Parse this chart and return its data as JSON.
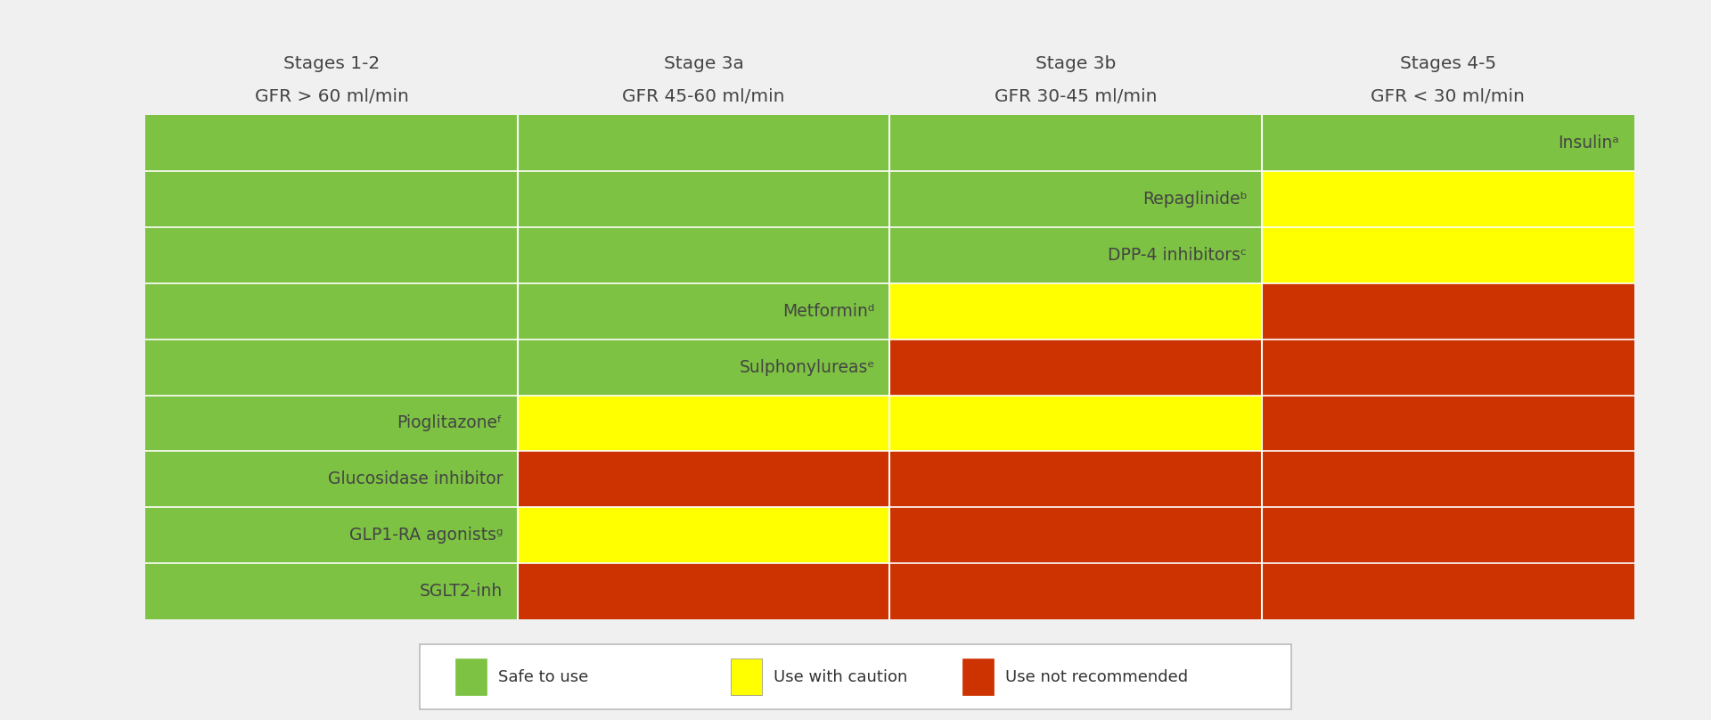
{
  "background_color": "#f0f0f0",
  "header_bg": "#c5cad5",
  "green": "#7dc242",
  "yellow": "#ffff00",
  "orange": "#cc3300",
  "col_labels_line1": [
    "Stages 1-2",
    "Stage 3a",
    "Stage 3b",
    "Stages 4-5"
  ],
  "col_labels_line2": [
    "GFR > 60 ml/min",
    "GFR 45-60 ml/min",
    "GFR 30-45 ml/min",
    "GFR < 30 ml/min"
  ],
  "drugs": [
    {
      "name": "Insulinᵃ",
      "segments": [
        [
          "green",
          4
        ]
      ]
    },
    {
      "name": "Repaglinideᵇ",
      "segments": [
        [
          "green",
          3
        ],
        [
          "yellow",
          1
        ]
      ]
    },
    {
      "name": "DPP-4 inhibitorsᶜ",
      "segments": [
        [
          "green",
          3
        ],
        [
          "yellow",
          1
        ]
      ]
    },
    {
      "name": "Metforminᵈ",
      "segments": [
        [
          "green",
          2
        ],
        [
          "yellow",
          1
        ],
        [
          "orange",
          1
        ]
      ]
    },
    {
      "name": "Sulphonylureasᵉ",
      "segments": [
        [
          "green",
          2
        ],
        [
          "orange",
          2
        ]
      ]
    },
    {
      "name": "Pioglitazoneᶠ",
      "segments": [
        [
          "green",
          1
        ],
        [
          "yellow",
          2
        ],
        [
          "orange",
          1
        ]
      ]
    },
    {
      "name": "Glucosidase inhibitor",
      "segments": [
        [
          "green",
          1
        ],
        [
          "orange",
          3
        ]
      ]
    },
    {
      "name": "GLP1-RA agonistsᵍ",
      "segments": [
        [
          "green",
          1
        ],
        [
          "yellow",
          1
        ],
        [
          "orange",
          2
        ]
      ]
    },
    {
      "name": "SGLT2-inh",
      "segments": [
        [
          "green",
          1
        ],
        [
          "orange",
          3
        ]
      ]
    }
  ],
  "n_cols": 4,
  "legend_labels": [
    "Safe to use",
    "Use with caution",
    "Use not recommended"
  ],
  "legend_colors": [
    "#7dc242",
    "#ffff00",
    "#cc3300"
  ],
  "label_text_color": "#444444",
  "header_text_color": "#444444"
}
